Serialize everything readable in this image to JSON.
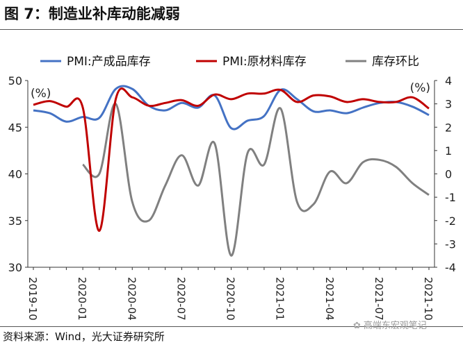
{
  "title": "图 7：制造业补库动能减弱",
  "source": "资料来源：Wind，光大证券研究所",
  "watermark": "高端东宏观笔记",
  "chart_data": {
    "type": "line",
    "x": [
      "2019-10",
      "2019-11",
      "2019-12",
      "2020-01",
      "2020-02",
      "2020-03",
      "2020-04",
      "2020-05",
      "2020-06",
      "2020-07",
      "2020-08",
      "2020-09",
      "2020-10",
      "2020-11",
      "2020-12",
      "2021-01",
      "2021-02",
      "2021-03",
      "2021-04",
      "2021-05",
      "2021-06",
      "2021-07",
      "2021-08",
      "2021-09",
      "2021-10"
    ],
    "x_tick_labels": [
      "2019-10",
      "2020-01",
      "2020-04",
      "2020-07",
      "2020-10",
      "2021-01",
      "2021-04",
      "2021-07",
      "2021-10"
    ],
    "left_axis": {
      "ylim": [
        30,
        50
      ],
      "ticks": [
        "30",
        "35",
        "40",
        "45",
        "50"
      ],
      "unit_label": "(%)"
    },
    "right_axis": {
      "ylim": [
        -4,
        4
      ],
      "ticks": [
        "-4",
        "-3",
        "-2",
        "-1",
        "0",
        "1",
        "2",
        "3",
        "4"
      ],
      "unit_label": "(%)"
    },
    "series": [
      {
        "name": "PMI:产成品库存",
        "color": "#4472c4",
        "axis": "left",
        "values": [
          46.8,
          46.5,
          45.6,
          46.1,
          46.0,
          49.1,
          49.1,
          47.3,
          46.8,
          47.6,
          47.1,
          48.4,
          44.9,
          45.7,
          46.2,
          49.0,
          48.0,
          46.7,
          46.8,
          46.5,
          47.1,
          47.6,
          47.7,
          47.2,
          46.3
        ]
      },
      {
        "name": "PMI:原材料库存",
        "color": "#c00000",
        "axis": "left",
        "values": [
          47.4,
          47.8,
          47.2,
          47.1,
          33.9,
          48.0,
          48.2,
          47.3,
          47.6,
          47.9,
          47.3,
          48.5,
          48.0,
          48.6,
          48.6,
          49.0,
          47.7,
          48.4,
          48.3,
          47.7,
          48.0,
          47.7,
          47.7,
          48.2,
          47.0
        ]
      },
      {
        "name": "库存环比",
        "color": "#808080",
        "axis": "right",
        "values": [
          null,
          null,
          null,
          0.4,
          0.0,
          3.0,
          -1.2,
          -2.0,
          -0.5,
          0.8,
          -0.5,
          1.3,
          -3.5,
          0.9,
          0.4,
          2.8,
          -1.2,
          -1.3,
          0.1,
          -0.4,
          0.5,
          0.6,
          0.3,
          -0.4,
          -0.9
        ]
      }
    ],
    "legend_position": "top",
    "grid": false
  }
}
